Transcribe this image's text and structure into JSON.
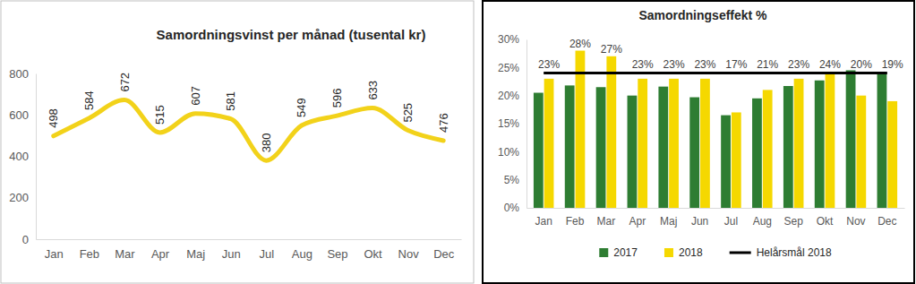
{
  "chart_data": [
    {
      "type": "line",
      "title": "Samordningsvinst per månad (tusental kr)",
      "categories": [
        "Jan",
        "Feb",
        "Mar",
        "Apr",
        "Maj",
        "Jun",
        "Jul",
        "Aug",
        "Sep",
        "Okt",
        "Nov",
        "Dec"
      ],
      "values": [
        498,
        584,
        672,
        515,
        607,
        581,
        380,
        549,
        596,
        633,
        525,
        476
      ],
      "color": "#f2d21a",
      "ylim": [
        0,
        800
      ],
      "yticks": [
        0,
        200,
        400,
        600,
        800
      ],
      "data_labels": true
    },
    {
      "type": "bar",
      "title": "Samordningseffekt %",
      "categories": [
        "Jan",
        "Feb",
        "Mar",
        "Apr",
        "Maj",
        "Jun",
        "Jul",
        "Aug",
        "Sep",
        "Okt",
        "Nov",
        "Dec"
      ],
      "series": [
        {
          "name": "2017",
          "color": "#2e7d32",
          "values": [
            20.5,
            21.8,
            21.5,
            20,
            21.6,
            19.7,
            16.5,
            19.5,
            21.7,
            22.7,
            24.5,
            24
          ]
        },
        {
          "name": "2018",
          "color": "#f5d800",
          "values": [
            23,
            28,
            27,
            23,
            23,
            23,
            17,
            21,
            23,
            24,
            20,
            19
          ],
          "value_labels": [
            "23%",
            "28%",
            "27%",
            "23%",
            "23%",
            "23%",
            "17%",
            "21%",
            "23%",
            "24%",
            "20%",
            "19%"
          ]
        },
        {
          "name": "Helårsmål 2018",
          "type": "line",
          "color": "#000000",
          "values": [
            24,
            24,
            24,
            24,
            24,
            24,
            24,
            24,
            24,
            24,
            24,
            24
          ]
        }
      ],
      "ylim": [
        0,
        30
      ],
      "yticks": [
        {
          "value": 0,
          "label": "0%"
        },
        {
          "value": 5,
          "label": "5%"
        },
        {
          "value": 10,
          "label": "10%"
        },
        {
          "value": 15,
          "label": "15%"
        },
        {
          "value": 20,
          "label": "20%"
        },
        {
          "value": 25,
          "label": "25%"
        },
        {
          "value": 30,
          "label": "30%"
        }
      ],
      "data_labels": true,
      "legend": "bottom"
    }
  ]
}
